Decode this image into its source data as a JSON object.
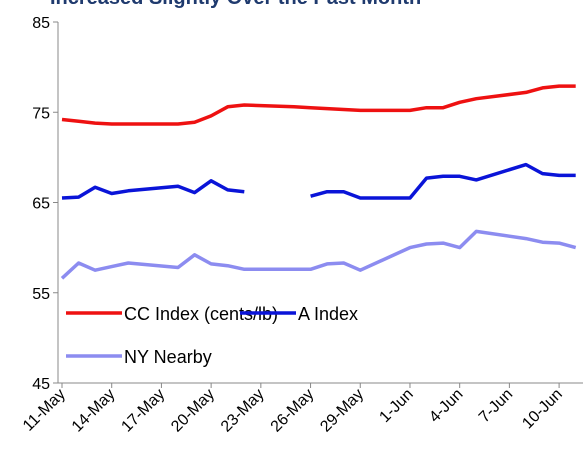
{
  "chart_data": {
    "type": "line",
    "title": "Increased Slightly Over the Past Month",
    "x": [
      "11-May",
      "12-May",
      "13-May",
      "14-May",
      "15-May",
      "18-May",
      "19-May",
      "20-May",
      "21-May",
      "22-May",
      "25-May",
      "26-May",
      "27-May",
      "28-May",
      "29-May",
      "1-Jun",
      "2-Jun",
      "3-Jun",
      "4-Jun",
      "5-Jun",
      "8-Jun",
      "9-Jun",
      "10-Jun",
      "11-Jun"
    ],
    "series": [
      {
        "name": "CC Index (cents/lb)",
        "color": "#ee1111",
        "values": [
          74.2,
          74.0,
          73.8,
          73.7,
          73.7,
          73.7,
          73.9,
          74.6,
          75.6,
          75.8,
          75.6,
          75.5,
          75.4,
          75.3,
          75.2,
          75.2,
          75.5,
          75.5,
          76.1,
          76.5,
          77.2,
          77.7,
          77.9,
          77.9
        ]
      },
      {
        "name": "A Index",
        "color": "#0a14d8",
        "values": [
          65.5,
          65.6,
          66.7,
          66.0,
          66.3,
          66.8,
          66.1,
          67.4,
          66.4,
          66.2,
          null,
          65.7,
          66.2,
          66.2,
          65.5,
          65.5,
          67.7,
          67.9,
          67.9,
          67.5,
          69.2,
          68.2,
          68.0,
          68.0
        ]
      },
      {
        "name": "NY Nearby",
        "color": "#8c8cf0",
        "values": [
          56.6,
          58.3,
          57.5,
          57.9,
          58.3,
          57.8,
          59.2,
          58.2,
          58.0,
          57.6,
          57.6,
          57.6,
          58.2,
          58.3,
          57.5,
          60.0,
          60.4,
          60.5,
          60.0,
          61.8,
          61.0,
          60.6,
          60.5,
          60.0
        ]
      }
    ],
    "xticks": [
      "11-May",
      "14-May",
      "17-May",
      "20-May",
      "23-May",
      "26-May",
      "29-May",
      "1-Jun",
      "4-Jun",
      "7-Jun",
      "10-Jun"
    ],
    "ylim": [
      45,
      85
    ],
    "yticks": [
      45,
      55,
      65,
      75,
      85
    ],
    "grid": false,
    "legend": "lower left"
  }
}
